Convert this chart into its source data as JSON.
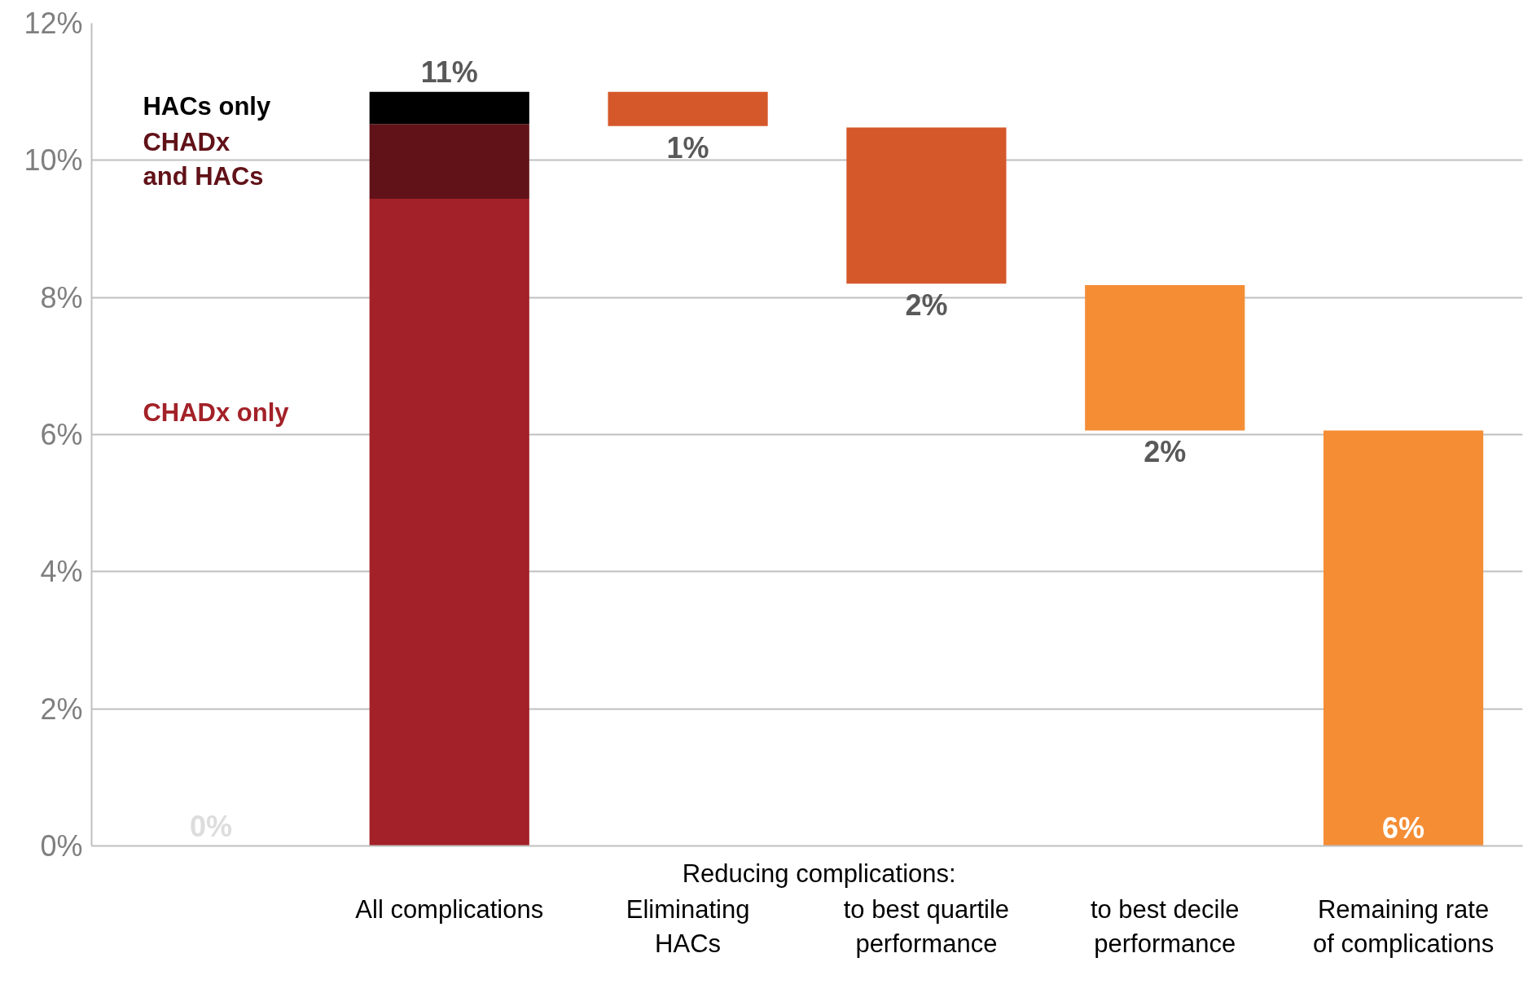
{
  "chart_data": {
    "type": "bar",
    "stacked": true,
    "categories": [
      null,
      "All complications",
      "Eliminating\nHACs",
      "to best quartile\nperformance",
      "to best decile\nperformance",
      "Remaining rate\nof complications"
    ],
    "series": [
      {
        "name": "CHADx only",
        "color": "#a32128",
        "values": [
          0,
          9.44,
          null,
          null,
          null,
          null
        ]
      },
      {
        "name": "CHADx\nand HACs",
        "color": "#611218",
        "values": [
          null,
          1.09,
          null,
          null,
          null,
          null
        ]
      },
      {
        "name": "HACs only",
        "color": "#000000",
        "values": [
          null,
          0.47,
          null,
          null,
          null,
          null
        ]
      },
      {
        "colors": [
          null,
          null,
          "#d5582b",
          "#d5582b",
          "#f58d35",
          "#f58d35"
        ],
        "values": [
          null,
          null,
          0.5,
          2.28,
          2.12,
          6.06
        ],
        "base": [
          null,
          null,
          10.5,
          8.2,
          6.06,
          0
        ],
        "value_labels": [
          null,
          null,
          "1%",
          "2%",
          "2%",
          "6%"
        ]
      }
    ],
    "totals": [
      "0%",
      "11%",
      null,
      null,
      null,
      null
    ],
    "ylim": [
      0,
      12
    ],
    "yticks": [
      {
        "value": 0,
        "label": "0%"
      },
      {
        "value": 2,
        "label": "2%"
      },
      {
        "value": 4,
        "label": "4%"
      },
      {
        "value": 6,
        "label": "6%"
      },
      {
        "value": 8,
        "label": "8%"
      },
      {
        "value": 10,
        "label": "10%"
      },
      {
        "value": 12,
        "label": "12%"
      }
    ],
    "grid": "y",
    "annotations": [
      "Reducing complications:"
    ]
  }
}
